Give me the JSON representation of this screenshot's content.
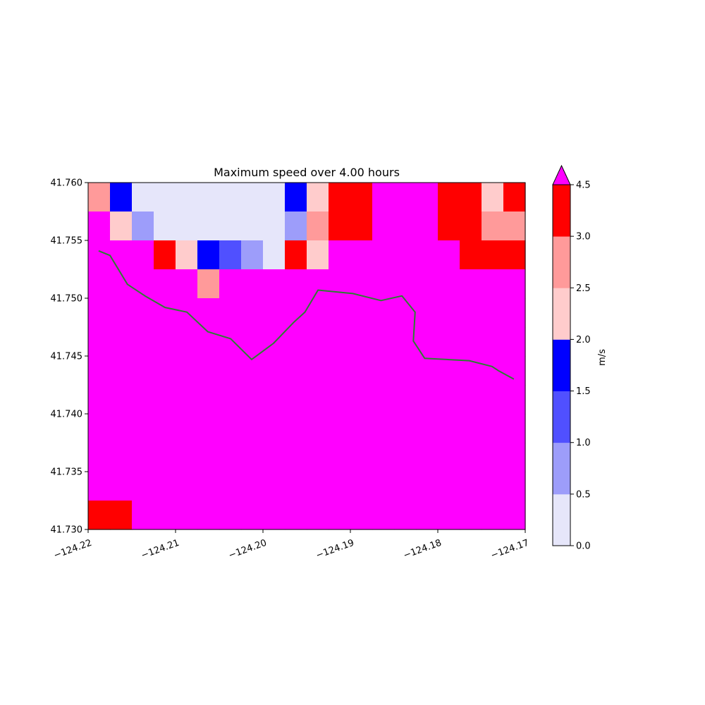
{
  "chart_data": {
    "type": "heatmap",
    "title": "Maximum speed over 4.00 hours",
    "xlabel": "",
    "ylabel": "",
    "xlim": [
      -124.22,
      -124.17
    ],
    "ylim": [
      41.73,
      41.76
    ],
    "x_ticks": [
      "−124.22",
      "−124.21",
      "−124.20",
      "−124.19",
      "−124.18",
      "−124.17"
    ],
    "y_ticks": [
      "41.760",
      "41.755",
      "41.750",
      "41.745",
      "41.740",
      "41.735",
      "41.730"
    ],
    "grid": false,
    "colorbar": {
      "label": "m/s",
      "levels": [
        0.0,
        0.5,
        1.0,
        1.5,
        2.0,
        2.5,
        3.0,
        4.5
      ],
      "tick_labels": [
        "0.0",
        "0.5",
        "1.0",
        "1.5",
        "2.0",
        "2.5",
        "3.0",
        "4.5"
      ],
      "colors": [
        "#e6e6fa",
        "#9d9dfa",
        "#5050ff",
        "#0000ff",
        "#ffcccc",
        "#ff9a9a",
        "#ff0000"
      ],
      "extend_color": "#ff00ff",
      "extend": "max"
    },
    "grid_cells": {
      "n_cols": 20,
      "n_rows": 12,
      "row_order": "top-to-bottom",
      "value_key": "color class: 0=0.0-0.5, 1=0.5-1.0, 2=1.0-1.5, 3=1.5-2.0, 4=2.0-2.5, 5=2.5-3.0, 6=3.0-4.5, 7=>4.5",
      "rows": [
        [
          5,
          3,
          0,
          0,
          0,
          0,
          0,
          0,
          0,
          3,
          4,
          6,
          6,
          7,
          7,
          7,
          6,
          6,
          4,
          6
        ],
        [
          7,
          4,
          1,
          0,
          0,
          0,
          0,
          0,
          0,
          1,
          5,
          6,
          6,
          7,
          7,
          7,
          6,
          6,
          5,
          5
        ],
        [
          7,
          7,
          7,
          6,
          4,
          3,
          2,
          1,
          0,
          6,
          4,
          7,
          7,
          7,
          7,
          7,
          7,
          6,
          6,
          6
        ],
        [
          7,
          7,
          7,
          7,
          7,
          5,
          7,
          7,
          7,
          7,
          7,
          7,
          7,
          7,
          7,
          7,
          7,
          7,
          7,
          7
        ],
        [
          7,
          7,
          7,
          7,
          7,
          7,
          7,
          7,
          7,
          7,
          7,
          7,
          7,
          7,
          7,
          7,
          7,
          7,
          7,
          7
        ],
        [
          7,
          7,
          7,
          7,
          7,
          7,
          7,
          7,
          7,
          7,
          7,
          7,
          7,
          7,
          7,
          7,
          7,
          7,
          7,
          7
        ],
        [
          7,
          7,
          7,
          7,
          7,
          7,
          7,
          7,
          7,
          7,
          7,
          7,
          7,
          7,
          7,
          7,
          7,
          7,
          7,
          7
        ],
        [
          7,
          7,
          7,
          7,
          7,
          7,
          7,
          7,
          7,
          7,
          7,
          7,
          7,
          7,
          7,
          7,
          7,
          7,
          7,
          7
        ],
        [
          7,
          7,
          7,
          7,
          7,
          7,
          7,
          7,
          7,
          7,
          7,
          7,
          7,
          7,
          7,
          7,
          7,
          7,
          7,
          7
        ],
        [
          7,
          7,
          7,
          7,
          7,
          7,
          7,
          7,
          7,
          7,
          7,
          7,
          7,
          7,
          7,
          7,
          7,
          7,
          7,
          7
        ],
        [
          7,
          7,
          7,
          7,
          7,
          7,
          7,
          7,
          7,
          7,
          7,
          7,
          7,
          7,
          7,
          7,
          7,
          7,
          7,
          7
        ],
        [
          6,
          6,
          7,
          7,
          7,
          7,
          7,
          7,
          7,
          7,
          7,
          7,
          7,
          7,
          7,
          7,
          7,
          7,
          7,
          7
        ]
      ]
    },
    "coastline": {
      "color": "#2e7d32",
      "points": [
        [
          -124.2188,
          41.7541
        ],
        [
          -124.2175,
          41.7537
        ],
        [
          -124.2155,
          41.7512
        ],
        [
          -124.2135,
          41.7502
        ],
        [
          -124.2112,
          41.7492
        ],
        [
          -124.2087,
          41.7488
        ],
        [
          -124.2063,
          41.7471
        ],
        [
          -124.2037,
          41.7465
        ],
        [
          -124.2013,
          41.7447
        ],
        [
          -124.1988,
          41.7461
        ],
        [
          -124.1965,
          41.7479
        ],
        [
          -124.1952,
          41.7488
        ],
        [
          -124.1937,
          41.7507
        ],
        [
          -124.1897,
          41.7504
        ],
        [
          -124.1865,
          41.7498
        ],
        [
          -124.1841,
          41.7502
        ],
        [
          -124.1826,
          41.7488
        ],
        [
          -124.1828,
          41.7463
        ],
        [
          -124.1815,
          41.7448
        ],
        [
          -124.1764,
          41.7446
        ],
        [
          -124.1738,
          41.7441
        ],
        [
          -124.173,
          41.7437
        ],
        [
          -124.1713,
          41.743
        ]
      ]
    }
  }
}
